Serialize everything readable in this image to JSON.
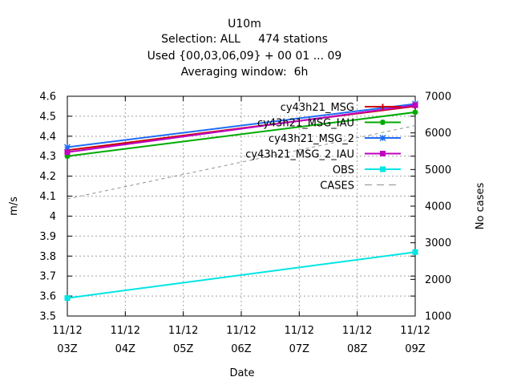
{
  "chart_data": {
    "type": "line",
    "title_lines": [
      "U10m",
      "Selection: ALL     474 stations",
      "Used {00,03,06,09} + 00 01 ... 09",
      "Averaging window:  6h"
    ],
    "xlabel": "Date",
    "ylabel": "m/s",
    "y2label": "No cases",
    "x_ticks": [
      [
        "11/12",
        "03Z"
      ],
      [
        "11/12",
        "04Z"
      ],
      [
        "11/12",
        "05Z"
      ],
      [
        "11/12",
        "06Z"
      ],
      [
        "11/12",
        "07Z"
      ],
      [
        "11/12",
        "08Z"
      ],
      [
        "11/12",
        "09Z"
      ]
    ],
    "x": [
      "2011-12-03Z",
      "2011-12-09Z"
    ],
    "ylim": [
      3.5,
      4.6
    ],
    "yticks": [
      "3.5",
      "3.6",
      "3.7",
      "3.8",
      "3.9",
      "4",
      "4.1",
      "4.2",
      "4.3",
      "4.4",
      "4.5",
      "4.6"
    ],
    "y2lim": [
      1000,
      7000
    ],
    "y2ticks": [
      "1000",
      "2000",
      "3000",
      "4000",
      "5000",
      "6000",
      "7000"
    ],
    "grid": true,
    "legend_position": "top-right",
    "series": [
      {
        "name": "cy43h21_MSG",
        "axis": "y",
        "color": "#cc0000",
        "marker": "plus",
        "values": [
          4.33,
          4.55
        ]
      },
      {
        "name": "cy43h21_MSG_IAU",
        "axis": "y",
        "color": "#00aa00",
        "marker": "cross",
        "values": [
          4.3,
          4.52
        ]
      },
      {
        "name": "cy43h21_MSG_2",
        "axis": "y",
        "color": "#1e6cf5",
        "marker": "star",
        "values": [
          4.345,
          4.562
        ]
      },
      {
        "name": "cy43h21_MSG_2_IAU",
        "axis": "y",
        "color": "#bf00bf",
        "marker": "square",
        "values": [
          4.32,
          4.555
        ]
      },
      {
        "name": "OBS",
        "axis": "y",
        "color": "#00e5e5",
        "marker": "square",
        "values": [
          3.59,
          3.82
        ]
      },
      {
        "name": "CASES",
        "axis": "y2",
        "color": "#909090",
        "marker": "none",
        "dashed": true,
        "values": [
          4200,
          6200
        ]
      }
    ]
  }
}
